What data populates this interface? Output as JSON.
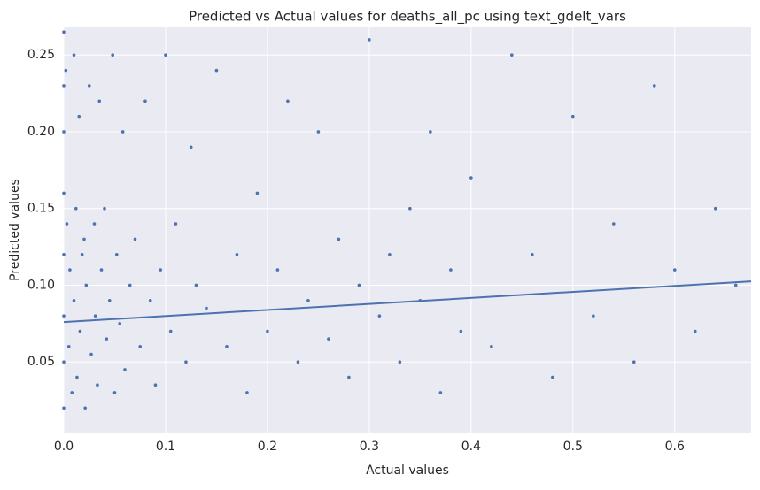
{
  "chart_data": {
    "type": "scatter",
    "title": "Predicted vs Actual values for deaths_all_pc using text_gdelt_vars",
    "xlabel": "Actual values",
    "ylabel": "Predicted values",
    "xlim": [
      0,
      0.675
    ],
    "ylim": [
      0.004,
      0.268
    ],
    "xticks": [
      {
        "value": 0,
        "label": "0.0"
      },
      0.1,
      0.2,
      0.3,
      0.4,
      0.5,
      0.6
    ],
    "yticks": [
      0.05,
      {
        "value": 0.1,
        "label": "0.10"
      },
      0.15,
      {
        "value": 0.2,
        "label": "0.20"
      },
      0.25
    ],
    "grid": true,
    "series": [
      {
        "type": "scatter",
        "color": "#4c72b0",
        "x": [
          0,
          0,
          0,
          0,
          0,
          0,
          0,
          0,
          0.002,
          0.003,
          0.005,
          0.006,
          0.008,
          0.01,
          0.01,
          0.012,
          0.013,
          0.015,
          0.016,
          0.018,
          0.02,
          0.021,
          0.022,
          0.025,
          0.027,
          0.03,
          0.031,
          0.033,
          0.035,
          0.037,
          0.04,
          0.042,
          0.045,
          0.048,
          0.05,
          0.052,
          0.055,
          0.058,
          0.06,
          0.065,
          0.07,
          0.075,
          0.08,
          0.085,
          0.09,
          0.095,
          0.1,
          0.105,
          0.11,
          0.12,
          0.125,
          0.13,
          0.14,
          0.15,
          0.16,
          0.17,
          0.18,
          0.19,
          0.2,
          0.21,
          0.22,
          0.23,
          0.24,
          0.25,
          0.26,
          0.27,
          0.28,
          0.29,
          0.3,
          0.31,
          0.32,
          0.33,
          0.34,
          0.35,
          0.36,
          0.37,
          0.38,
          0.39,
          0.4,
          0.42,
          0.44,
          0.46,
          0.48,
          0.5,
          0.52,
          0.54,
          0.56,
          0.58,
          0.6,
          0.62,
          0.64,
          0.66
        ],
        "values": [
          0.265,
          0.23,
          0.2,
          0.16,
          0.12,
          0.08,
          0.05,
          0.02,
          0.24,
          0.14,
          0.06,
          0.11,
          0.03,
          0.25,
          0.09,
          0.15,
          0.04,
          0.21,
          0.07,
          0.12,
          0.13,
          0.02,
          0.1,
          0.23,
          0.055,
          0.14,
          0.08,
          0.035,
          0.22,
          0.11,
          0.15,
          0.065,
          0.09,
          0.25,
          0.03,
          0.12,
          0.075,
          0.2,
          0.045,
          0.1,
          0.13,
          0.06,
          0.22,
          0.09,
          0.035,
          0.11,
          0.25,
          0.07,
          0.14,
          0.05,
          0.19,
          0.1,
          0.085,
          0.24,
          0.06,
          0.12,
          0.03,
          0.16,
          0.07,
          0.11,
          0.22,
          0.05,
          0.09,
          0.2,
          0.065,
          0.13,
          0.04,
          0.1,
          0.26,
          0.08,
          0.12,
          0.05,
          0.15,
          0.09,
          0.2,
          0.03,
          0.11,
          0.07,
          0.17,
          0.06,
          0.25,
          0.12,
          0.04,
          0.21,
          0.08,
          0.14,
          0.05,
          0.23,
          0.11,
          0.07,
          0.15,
          0.1
        ]
      },
      {
        "type": "line",
        "color": "#4c72b0",
        "x": [
          0,
          0.675
        ],
        "values": [
          0.076,
          0.1025
        ]
      }
    ]
  }
}
